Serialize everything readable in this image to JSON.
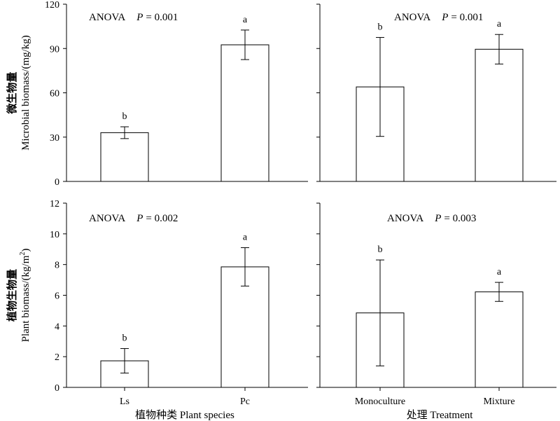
{
  "chart_data": [
    {
      "type": "bar",
      "panel": "top-left",
      "categories": [
        "Ls",
        "Pc"
      ],
      "values": [
        33,
        92.5
      ],
      "errors": [
        4,
        10
      ],
      "letters": [
        "b",
        "a"
      ],
      "annotation": {
        "test": "ANOVA",
        "p_label": "P",
        "p_text": "= 0.001"
      },
      "ylim": [
        0,
        120
      ],
      "yticks": [
        0,
        30,
        60,
        90,
        120
      ],
      "ylabel_cn": "微生物量",
      "ylabel_en": "Microbial biomass/(mg/kg)",
      "xlabel": ""
    },
    {
      "type": "bar",
      "panel": "top-right",
      "categories": [
        "Monoculture",
        "Mixture"
      ],
      "values": [
        64,
        89.5
      ],
      "errors": [
        33.5,
        10
      ],
      "letters": [
        "b",
        "a"
      ],
      "annotation": {
        "test": "ANOVA",
        "p_label": "P",
        "p_text": "= 0.001"
      },
      "ylim": [
        0,
        120
      ],
      "xlabel": ""
    },
    {
      "type": "bar",
      "panel": "bottom-left",
      "categories": [
        "Ls",
        "Pc"
      ],
      "values": [
        1.73,
        7.85
      ],
      "errors": [
        0.8,
        1.25
      ],
      "letters": [
        "b",
        "a"
      ],
      "annotation": {
        "test": "ANOVA",
        "p_label": "P",
        "p_text": "= 0.002"
      },
      "ylim": [
        0,
        12
      ],
      "yticks": [
        0,
        2,
        4,
        6,
        8,
        10,
        12
      ],
      "ylabel_cn": "植物生物量",
      "ylabel_en": "Plant biomass/(kg/m",
      "ylabel_sup": "2",
      "ylabel_close": ")",
      "xlabel": "植物种类 Plant  species"
    },
    {
      "type": "bar",
      "panel": "bottom-right",
      "categories": [
        "Monoculture",
        "Mixture"
      ],
      "values": [
        4.85,
        6.22
      ],
      "errors": [
        3.45,
        0.62
      ],
      "letters": [
        "b",
        "a"
      ],
      "annotation": {
        "test": "ANOVA",
        "p_label": "P",
        "p_text": "= 0.003"
      },
      "ylim": [
        0,
        12
      ],
      "xlabel": "处理 Treatment"
    }
  ]
}
